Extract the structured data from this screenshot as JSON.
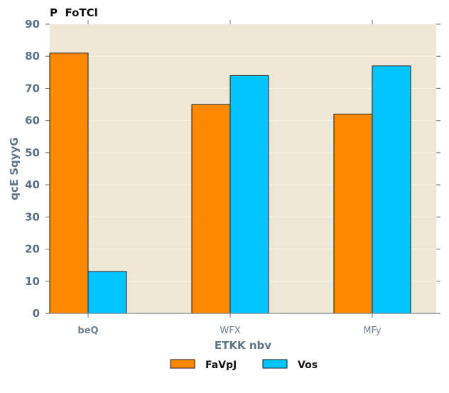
{
  "chart_data": {
    "type": "bar",
    "title": "P  FoTCl",
    "xlabel": "ETKK nbv",
    "ylabel": "qcE SqyyG",
    "categories": [
      "beQ",
      "WFX",
      "MFy"
    ],
    "series": [
      {
        "name": "FaVpJ",
        "values": [
          81,
          65,
          62
        ],
        "color": "#ff8800"
      },
      {
        "name": "Vos",
        "values": [
          13,
          74,
          77
        ],
        "color": "#00c5ff"
      }
    ],
    "ylim": [
      0,
      90
    ],
    "yticks": [
      0,
      10,
      20,
      30,
      40,
      50,
      60,
      70,
      80,
      90
    ],
    "grid": true,
    "legend_position": "bottom-center",
    "colors": {
      "plot_background": "#efe7d5",
      "grid": "#f8f4ea",
      "axis_text": "#5f6f7c",
      "bar_edge": "#1a1a1a"
    }
  }
}
